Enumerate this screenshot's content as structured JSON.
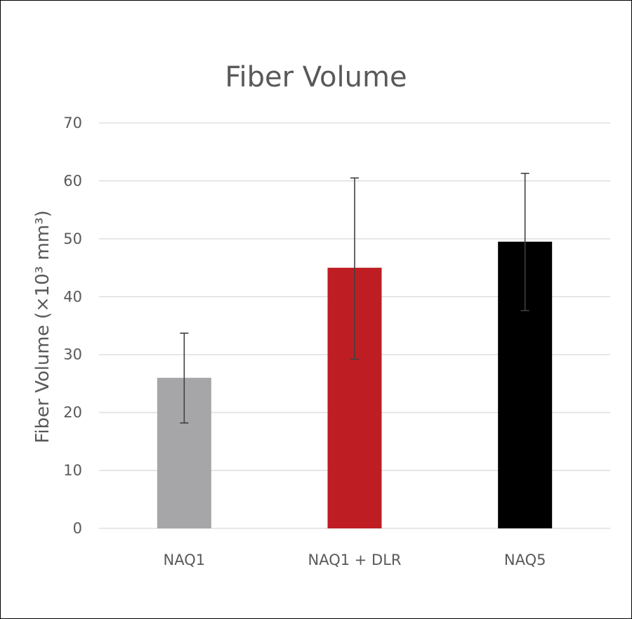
{
  "chart_data": {
    "type": "bar",
    "title": "Fiber Volume",
    "xlabel": "",
    "ylabel": "Fiber Volume (×10³ mm³)",
    "categories": [
      "NAQ1",
      "NAQ1 + DLR",
      "NAQ5"
    ],
    "values": [
      26,
      45,
      49.5
    ],
    "error_low": [
      18.2,
      29.2,
      37.6
    ],
    "error_high": [
      33.7,
      60.5,
      61.3
    ],
    "bar_colors": [
      "#a6a6a8",
      "#be1e23",
      "#000000"
    ],
    "ylim": [
      0,
      70
    ],
    "yticks": [
      0,
      10,
      20,
      30,
      40,
      50,
      60,
      70
    ],
    "grid": true,
    "legend": "none"
  }
}
